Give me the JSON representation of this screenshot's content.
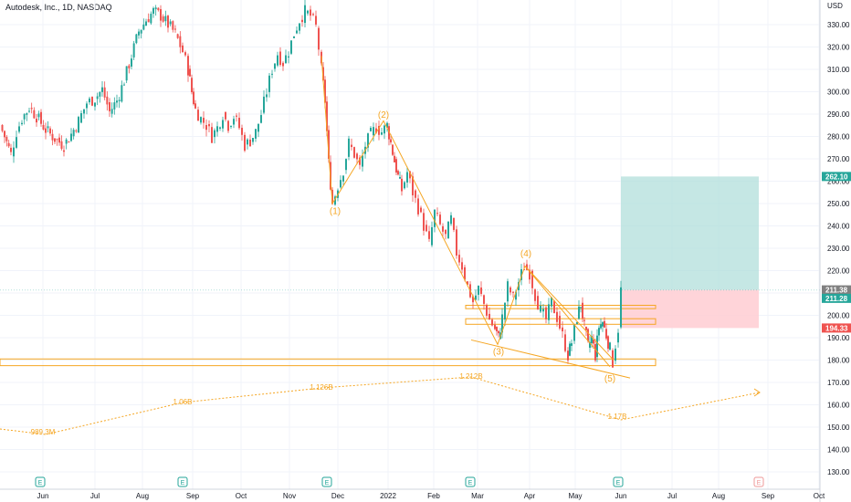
{
  "header": {
    "symbol_name": "Autodesk, Inc.",
    "interval": "1D",
    "exchange": "NASDAQ"
  },
  "colors": {
    "up": "#26a69a",
    "down": "#ef5350",
    "annotation": "#f5a623",
    "target_zone": "#b2dfdb",
    "stop_zone": "#ffcdd2",
    "target_label": "#26a69a",
    "current_label": "#26a69a",
    "entry_label": "#808080",
    "stop_label": "#ef5350",
    "grid": "#f0f3fa",
    "axis_text": "#131722"
  },
  "chart_data": {
    "type": "candlestick",
    "title": "Autodesk, Inc., 1D, NASDAQ",
    "currency_label": "USD",
    "y_axis": {
      "ylim": [
        124,
        335
      ],
      "ticks": [
        130,
        140,
        150,
        160,
        170,
        180,
        190,
        200,
        210,
        220,
        230,
        240,
        250,
        260,
        270,
        280,
        290,
        300,
        310,
        320,
        330
      ]
    },
    "x_axis": {
      "labels": [
        "Jun",
        "Jul",
        "Aug",
        "Sep",
        "Oct",
        "Nov",
        "Dec",
        "2022",
        "Feb",
        "Mar",
        "Apr",
        "May",
        "Jun",
        "Jul",
        "Aug",
        "Sep",
        "Oct"
      ]
    },
    "price_path": [
      [
        0,
        285
      ],
      [
        5,
        280
      ],
      [
        12,
        272
      ],
      [
        18,
        282
      ],
      [
        24,
        288
      ],
      [
        32,
        293
      ],
      [
        40,
        289
      ],
      [
        50,
        283
      ],
      [
        60,
        279
      ],
      [
        70,
        276
      ],
      [
        78,
        281
      ],
      [
        86,
        287
      ],
      [
        95,
        295
      ],
      [
        104,
        297
      ],
      [
        112,
        301
      ],
      [
        120,
        291
      ],
      [
        128,
        296
      ],
      [
        136,
        305
      ],
      [
        144,
        316
      ],
      [
        152,
        327
      ],
      [
        160,
        332
      ],
      [
        168,
        336
      ],
      [
        176,
        334
      ],
      [
        184,
        330
      ],
      [
        192,
        326
      ],
      [
        200,
        318
      ],
      [
        206,
        310
      ],
      [
        210,
        300
      ],
      [
        214,
        292
      ],
      [
        220,
        288
      ],
      [
        226,
        285
      ],
      [
        232,
        280
      ],
      [
        238,
        284
      ],
      [
        244,
        290
      ],
      [
        250,
        285
      ],
      [
        256,
        289
      ],
      [
        262,
        284
      ],
      [
        268,
        276
      ],
      [
        274,
        278
      ],
      [
        280,
        282
      ],
      [
        286,
        290
      ],
      [
        292,
        300
      ],
      [
        298,
        310
      ],
      [
        304,
        317
      ],
      [
        310,
        313
      ],
      [
        316,
        318
      ],
      [
        322,
        326
      ],
      [
        328,
        332
      ],
      [
        334,
        336
      ],
      [
        340,
        334
      ],
      [
        346,
        329
      ],
      [
        352,
        310
      ],
      [
        356,
        296
      ],
      [
        360,
        268
      ],
      [
        364,
        250
      ],
      [
        370,
        258
      ],
      [
        376,
        265
      ],
      [
        382,
        277
      ],
      [
        388,
        272
      ],
      [
        394,
        266
      ],
      [
        400,
        276
      ],
      [
        406,
        281
      ],
      [
        412,
        284
      ],
      [
        418,
        282
      ],
      [
        424,
        285
      ],
      [
        428,
        277
      ],
      [
        432,
        269
      ],
      [
        436,
        262
      ],
      [
        440,
        256
      ],
      [
        446,
        264
      ],
      [
        452,
        255
      ],
      [
        458,
        248
      ],
      [
        464,
        240
      ],
      [
        470,
        232
      ],
      [
        476,
        246
      ],
      [
        482,
        240
      ],
      [
        488,
        235
      ],
      [
        494,
        243
      ],
      [
        500,
        228
      ],
      [
        506,
        222
      ],
      [
        512,
        213
      ],
      [
        518,
        206
      ],
      [
        524,
        212
      ],
      [
        530,
        205
      ],
      [
        536,
        198
      ],
      [
        542,
        194
      ],
      [
        546,
        190
      ],
      [
        550,
        199
      ],
      [
        556,
        213
      ],
      [
        562,
        208
      ],
      [
        568,
        215
      ],
      [
        574,
        222
      ],
      [
        580,
        219
      ],
      [
        586,
        209
      ],
      [
        592,
        202
      ],
      [
        598,
        198
      ],
      [
        604,
        206
      ],
      [
        610,
        199
      ],
      [
        616,
        191
      ],
      [
        622,
        182
      ],
      [
        626,
        188
      ],
      [
        632,
        199
      ],
      [
        636,
        205
      ],
      [
        640,
        195
      ],
      [
        644,
        186
      ],
      [
        648,
        190
      ],
      [
        652,
        182
      ],
      [
        656,
        195
      ],
      [
        660,
        197
      ],
      [
        664,
        191
      ],
      [
        668,
        185
      ],
      [
        671,
        179
      ],
      [
        674,
        187
      ],
      [
        677,
        194
      ],
      [
        680,
        211.28
      ]
    ],
    "wave_labels": [
      {
        "label": "(1)",
        "price": 247
      },
      {
        "label": "(2)",
        "price": 290
      },
      {
        "label": "(3)",
        "price": 184
      },
      {
        "label": "(4)",
        "price": 228
      },
      {
        "label": "(5)",
        "price": 172
      }
    ],
    "volume_profile_labels": [
      {
        "label": "989.3M"
      },
      {
        "label": "1.06B"
      },
      {
        "label": "1.126B"
      },
      {
        "label": "1.212B"
      },
      {
        "label": "1.17B"
      }
    ],
    "zones": [
      {
        "kind": "resistance",
        "from": 203,
        "to": 204.5
      },
      {
        "kind": "resistance",
        "from": 196,
        "to": 198.5
      },
      {
        "kind": "support",
        "from": 177.5,
        "to": 180.5
      }
    ],
    "position": {
      "target": 262.1,
      "entry": 211.38,
      "stop": 194.33,
      "current": 211.28
    },
    "price_labels": {
      "target": "262.10",
      "entry": "211.38",
      "current": "211.28",
      "stop": "194.33"
    },
    "earnings_markers": [
      "E",
      "E",
      "E",
      "E",
      "E",
      "E"
    ]
  }
}
